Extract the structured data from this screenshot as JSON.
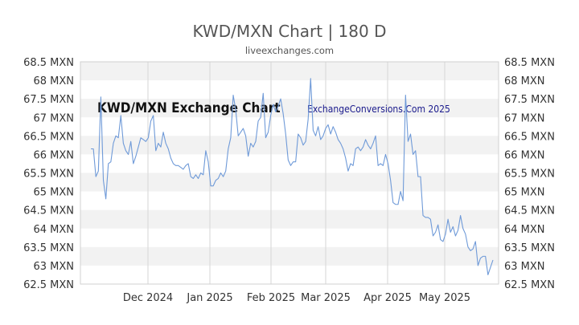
{
  "chart_data": {
    "type": "line",
    "title": "KWD/MXN Chart | 180 D",
    "subtitle": "liveexchanges.com",
    "watermark_left": "KWD/MXN Exchange Chart",
    "watermark_right": "ExchangeConversions.Com 2025",
    "ylim": [
      62.5,
      68.5
    ],
    "y_ticks": [
      {
        "value": 68.5,
        "label": "68.5 MXN"
      },
      {
        "value": 68,
        "label": "68 MXN"
      },
      {
        "value": 67.5,
        "label": "67.5 MXN"
      },
      {
        "value": 67,
        "label": "67 MXN"
      },
      {
        "value": 66.5,
        "label": "66.5 MXN"
      },
      {
        "value": 66,
        "label": "66 MXN"
      },
      {
        "value": 65.5,
        "label": "65.5 MXN"
      },
      {
        "value": 65,
        "label": "65 MXN"
      },
      {
        "value": 64.5,
        "label": "64.5 MXN"
      },
      {
        "value": 64,
        "label": "64 MXN"
      },
      {
        "value": 63.5,
        "label": "63.5 MXN"
      },
      {
        "value": 63,
        "label": "63 MXN"
      },
      {
        "value": 62.5,
        "label": "62.5 MXN"
      }
    ],
    "x_ticks": [
      "Dec 2024",
      "Jan 2025",
      "Feb 2025",
      "Mar 2025",
      "Apr 2025",
      "May 2025"
    ],
    "grid": true,
    "line_color": "#6f9ad8",
    "band_color": "#f2f2f2",
    "series": [
      {
        "values": [
          66.15,
          66.15,
          65.4,
          65.55,
          67.55,
          65.3,
          64.8,
          65.75,
          65.8,
          66.3,
          66.5,
          66.45,
          67.05,
          66.3,
          66.1,
          66.0,
          66.35,
          65.75,
          65.95,
          66.2,
          66.45,
          66.4,
          66.35,
          66.45,
          66.9,
          67.05,
          66.1,
          66.3,
          66.2,
          66.6,
          66.3,
          66.15,
          65.9,
          65.75,
          65.7,
          65.7,
          65.65,
          65.6,
          65.7,
          65.75,
          65.4,
          65.35,
          65.45,
          65.35,
          65.5,
          65.45,
          66.1,
          65.8,
          65.15,
          65.15,
          65.3,
          65.35,
          65.5,
          65.4,
          65.55,
          66.15,
          66.45,
          67.6,
          67.2,
          66.5,
          66.6,
          66.7,
          66.5,
          65.95,
          66.3,
          66.2,
          66.35,
          66.9,
          67.0,
          67.65,
          66.45,
          66.6,
          67.05,
          67.35,
          67.15,
          67.3,
          67.5,
          67.1,
          66.55,
          65.85,
          65.7,
          65.8,
          65.8,
          66.55,
          66.45,
          66.25,
          66.35,
          66.95,
          68.05,
          66.65,
          66.5,
          66.75,
          66.4,
          66.5,
          66.7,
          66.8,
          66.55,
          66.75,
          66.6,
          66.4,
          66.3,
          66.15,
          65.9,
          65.55,
          65.75,
          65.7,
          66.15,
          66.2,
          66.1,
          66.2,
          66.4,
          66.25,
          66.15,
          66.3,
          66.5,
          65.7,
          65.75,
          65.7,
          66.0,
          65.75,
          65.3,
          64.7,
          64.65,
          64.65,
          65.0,
          64.75,
          67.6,
          66.35,
          66.55,
          66.0,
          66.1,
          65.4,
          65.4,
          64.35,
          64.3,
          64.3,
          64.25,
          63.8,
          63.9,
          64.1,
          63.7,
          63.65,
          63.85,
          64.25,
          63.9,
          64.05,
          63.8,
          63.95,
          64.35,
          64.0,
          63.85,
          63.5,
          63.4,
          63.45,
          63.65,
          63.0,
          63.2,
          63.25,
          63.25,
          62.75,
          62.95,
          63.15
        ]
      }
    ]
  }
}
